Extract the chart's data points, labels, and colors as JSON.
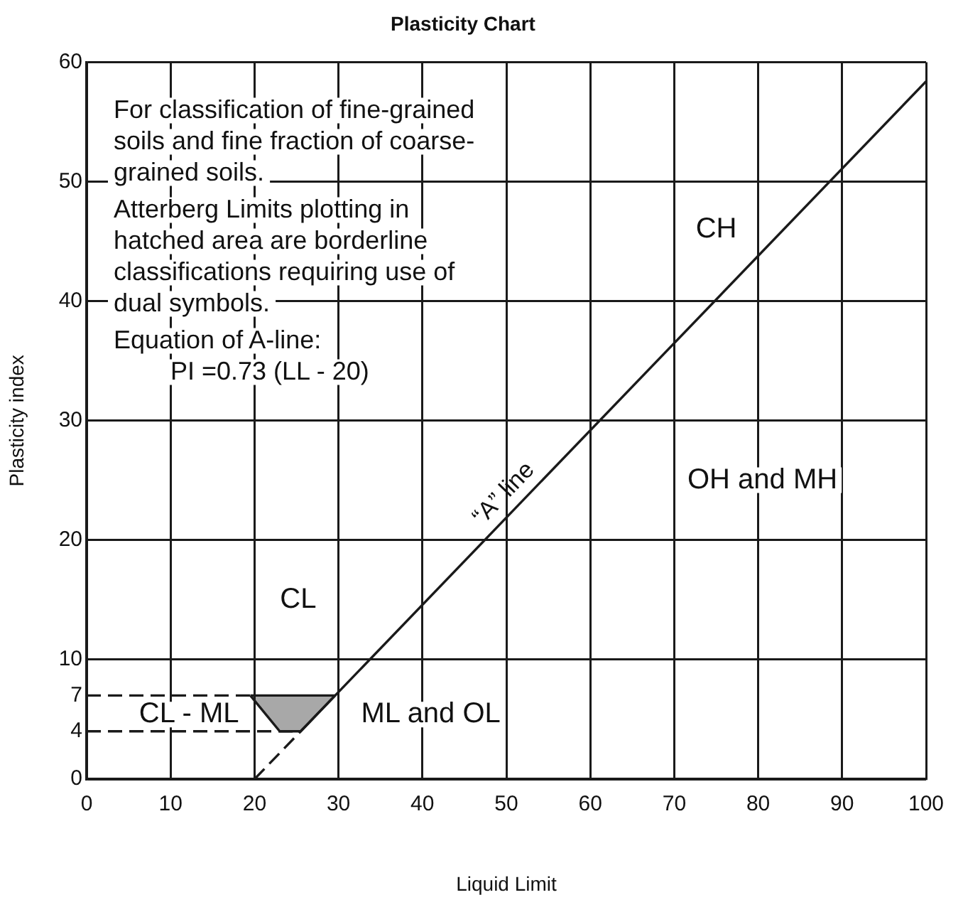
{
  "chart_data": {
    "type": "line",
    "title": "Plasticity Chart",
    "xlabel": "Liquid Limit",
    "ylabel": "Plasticity index",
    "xlim": [
      0,
      100
    ],
    "ylim": [
      0,
      60
    ],
    "xticks": [
      0,
      10,
      20,
      30,
      40,
      50,
      60,
      70,
      80,
      90,
      100
    ],
    "yticks": [
      0,
      4,
      7,
      10,
      20,
      30,
      40,
      50,
      60
    ],
    "grid": true,
    "marker": "none",
    "series": [
      {
        "color": "#1a1a1a",
        "line_style": "dashed",
        "x": [
          20,
          25.5
        ],
        "values": [
          0,
          4
        ]
      },
      {
        "color": "#1a1a1a",
        "line_style": "solid",
        "x": [
          25.5,
          100
        ],
        "values": [
          4,
          58.4
        ]
      },
      {
        "color": "#1a1a1a",
        "line_style": "dashed",
        "x": [
          0,
          25.5
        ],
        "values": [
          4,
          4
        ]
      },
      {
        "color": "#1a1a1a",
        "line_style": "dashed",
        "x": [
          0,
          19.5
        ],
        "values": [
          7,
          7
        ]
      },
      {
        "type": "area",
        "color": "#1a1a1a",
        "x": [
          19.5,
          29.6,
          25.5,
          23,
          19.5
        ],
        "values": [
          7,
          7,
          4,
          4,
          7
        ]
      }
    ],
    "annotations": [
      "For classification of fine-grained soils and fine fraction of coarse-grained soils.",
      "Atterberg Limits plotting in hatched area are borderline classifications requiring use of dual symbols.",
      "Equation of A-line:",
      "PI =0.73 (LL - 20)",
      "CH",
      "OH and MH",
      "CL",
      "ML and OL",
      "CL - ML",
      {
        "text": "“A” line",
        "x": 51.3,
        "y": 22.8
      }
    ]
  }
}
